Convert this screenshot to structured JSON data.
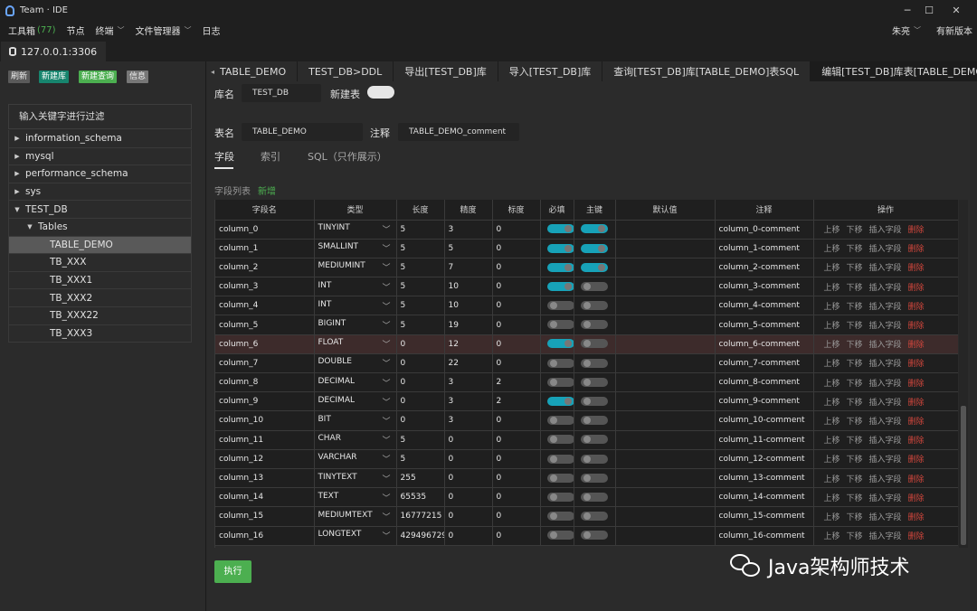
{
  "window": {
    "title": "Team · IDE"
  },
  "menu": {
    "items": [
      {
        "label": "工具箱",
        "count": "(77)"
      },
      {
        "label": "节点"
      },
      {
        "label": "终端"
      },
      {
        "label": "文件管理器"
      },
      {
        "label": "日志"
      }
    ],
    "user": "朱亮",
    "version": "有新版本"
  },
  "connection": {
    "label": "127.0.0.1:3306"
  },
  "sidebar": {
    "buttons": {
      "refresh": "刷新",
      "new_db": "新建库",
      "new_query": "新建查询",
      "info": "信息"
    },
    "filter_placeholder": "输入关键字进行过滤",
    "tree": [
      {
        "label": "information_schema"
      },
      {
        "label": "mysql"
      },
      {
        "label": "performance_schema"
      },
      {
        "label": "sys"
      },
      {
        "label": "TEST_DB"
      },
      {
        "label": "Tables"
      },
      {
        "label": "TABLE_DEMO"
      },
      {
        "label": "TB_XXX"
      },
      {
        "label": "TB_XXX1"
      },
      {
        "label": "TB_XXX2"
      },
      {
        "label": "TB_XXX22"
      },
      {
        "label": "TB_XXX3"
      }
    ]
  },
  "tabs": [
    "TABLE_DEMO",
    "TEST_DB>DDL",
    "导出[TEST_DB]库",
    "导入[TEST_DB]库",
    "查询[TEST_DB]库[TABLE_DEMO]表SQL",
    "编辑[TEST_DB]库表[TABLE_DEMO]"
  ],
  "form": {
    "db_label": "库名",
    "db_value": "TEST_DB",
    "new_table_label": "新建表",
    "table_label": "表名",
    "table_value": "TABLE_DEMO",
    "comment_label": "注释",
    "comment_value": "TABLE_DEMO_comment"
  },
  "subtabs": [
    "字段",
    "索引",
    "SQL（只作展示）"
  ],
  "fields": {
    "list_label": "字段列表",
    "add_label": "新增",
    "headers": [
      "字段名",
      "类型",
      "长度",
      "精度",
      "标度",
      "必填",
      "主键",
      "默认值",
      "注释",
      "操作"
    ],
    "ops": [
      "上移",
      "下移",
      "插入字段",
      "删除"
    ],
    "rows": [
      {
        "name": "column_0",
        "type": "TINYINT",
        "len": "5",
        "prec": "3",
        "scale": "0",
        "req": true,
        "pk": true,
        "def": "",
        "comment": "column_0-comment"
      },
      {
        "name": "column_1",
        "type": "SMALLINT",
        "len": "5",
        "prec": "5",
        "scale": "0",
        "req": true,
        "pk": true,
        "def": "",
        "comment": "column_1-comment"
      },
      {
        "name": "column_2",
        "type": "MEDIUMINT",
        "len": "5",
        "prec": "7",
        "scale": "0",
        "req": true,
        "pk": true,
        "def": "",
        "comment": "column_2-comment"
      },
      {
        "name": "column_3",
        "type": "INT",
        "len": "5",
        "prec": "10",
        "scale": "0",
        "req": true,
        "pk": false,
        "def": "",
        "comment": "column_3-comment"
      },
      {
        "name": "column_4",
        "type": "INT",
        "len": "5",
        "prec": "10",
        "scale": "0",
        "req": false,
        "pk": false,
        "def": "",
        "comment": "column_4-comment"
      },
      {
        "name": "column_5",
        "type": "BIGINT",
        "len": "5",
        "prec": "19",
        "scale": "0",
        "req": false,
        "pk": false,
        "def": "",
        "comment": "column_5-comment"
      },
      {
        "name": "column_6",
        "type": "FLOAT",
        "len": "0",
        "prec": "12",
        "scale": "0",
        "req": true,
        "pk": false,
        "def": "",
        "comment": "column_6-comment"
      },
      {
        "name": "column_7",
        "type": "DOUBLE",
        "len": "0",
        "prec": "22",
        "scale": "0",
        "req": false,
        "pk": false,
        "def": "",
        "comment": "column_7-comment"
      },
      {
        "name": "column_8",
        "type": "DECIMAL",
        "len": "0",
        "prec": "3",
        "scale": "2",
        "req": false,
        "pk": false,
        "def": "",
        "comment": "column_8-comment"
      },
      {
        "name": "column_9",
        "type": "DECIMAL",
        "len": "0",
        "prec": "3",
        "scale": "2",
        "req": true,
        "pk": false,
        "def": "",
        "comment": "column_9-comment"
      },
      {
        "name": "column_10",
        "type": "BIT",
        "len": "0",
        "prec": "3",
        "scale": "0",
        "req": false,
        "pk": false,
        "def": "",
        "comment": "column_10-comment"
      },
      {
        "name": "column_11",
        "type": "CHAR",
        "len": "5",
        "prec": "0",
        "scale": "0",
        "req": false,
        "pk": false,
        "def": "",
        "comment": "column_11-comment"
      },
      {
        "name": "column_12",
        "type": "VARCHAR",
        "len": "5",
        "prec": "0",
        "scale": "0",
        "req": false,
        "pk": false,
        "def": "",
        "comment": "column_12-comment"
      },
      {
        "name": "column_13",
        "type": "TINYTEXT",
        "len": "255",
        "prec": "0",
        "scale": "0",
        "req": false,
        "pk": false,
        "def": "",
        "comment": "column_13-comment"
      },
      {
        "name": "column_14",
        "type": "TEXT",
        "len": "65535",
        "prec": "0",
        "scale": "0",
        "req": false,
        "pk": false,
        "def": "",
        "comment": "column_14-comment"
      },
      {
        "name": "column_15",
        "type": "MEDIUMTEXT",
        "len": "16777215",
        "prec": "0",
        "scale": "0",
        "req": false,
        "pk": false,
        "def": "",
        "comment": "column_15-comment"
      },
      {
        "name": "column_16",
        "type": "LONGTEXT",
        "len": "429496729",
        "prec": "0",
        "scale": "0",
        "req": false,
        "pk": false,
        "def": "",
        "comment": "column_16-comment"
      }
    ]
  },
  "run_label": "执行",
  "watermark": "Java架构师技术",
  "colors": {
    "accent": "#17a2b8",
    "green": "#4caf50",
    "danger": "#d0463c",
    "highlight_row": "#3d2b2b"
  }
}
